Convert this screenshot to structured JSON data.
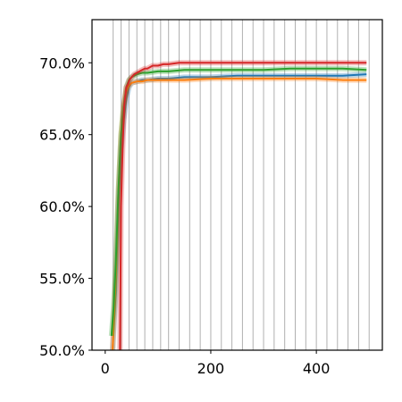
{
  "chart_data": {
    "type": "line",
    "title": "",
    "xlabel": "",
    "ylabel": "",
    "xlim": [
      -25,
      525
    ],
    "ylim": [
      50,
      73
    ],
    "x_ticks": [
      {
        "value": 0,
        "label": "0"
      },
      {
        "value": 200,
        "label": "200"
      },
      {
        "value": 400,
        "label": "400"
      }
    ],
    "y_ticks": [
      {
        "value": 50,
        "label": "50.0%"
      },
      {
        "value": 55,
        "label": "55.0%"
      },
      {
        "value": 60,
        "label": "60.0%"
      },
      {
        "value": 65,
        "label": "65.0%"
      },
      {
        "value": 70,
        "label": "70.0%"
      }
    ],
    "vertical_gridlines": [
      15,
      30,
      45,
      60,
      75,
      90,
      105,
      120,
      140,
      160,
      180,
      200,
      220,
      240,
      260,
      280,
      300,
      320,
      340,
      360,
      380,
      400,
      420,
      440,
      460,
      480,
      500
    ],
    "grid": "vertical-only",
    "legend": "none",
    "series": [
      {
        "color": "#1f77b4",
        "x": [
          14,
          20,
          25,
          30,
          35,
          40,
          45,
          50,
          60,
          70,
          80,
          100,
          120,
          150,
          200,
          250,
          300,
          350,
          400,
          450,
          495
        ],
        "y": [
          50,
          54,
          60,
          64,
          66,
          67.5,
          68.3,
          68.6,
          68.7,
          68.8,
          68.8,
          68.9,
          68.9,
          69.0,
          69.0,
          69.1,
          69.1,
          69.1,
          69.1,
          69.1,
          69.2
        ]
      },
      {
        "color": "#ff7f0e",
        "x": [
          14,
          20,
          25,
          30,
          35,
          40,
          45,
          50,
          60,
          70,
          80,
          100,
          120,
          150,
          200,
          250,
          300,
          350,
          400,
          450,
          495
        ],
        "y": [
          50,
          55,
          61,
          65,
          67,
          68,
          68.4,
          68.6,
          68.7,
          68.7,
          68.8,
          68.8,
          68.8,
          68.8,
          68.9,
          68.9,
          68.9,
          68.9,
          68.9,
          68.8,
          68.8
        ]
      },
      {
        "color": "#2ca02c",
        "x": [
          12,
          16,
          20,
          25,
          30,
          35,
          40,
          45,
          50,
          60,
          70,
          80,
          100,
          120,
          150,
          200,
          250,
          300,
          350,
          400,
          450,
          495
        ],
        "y": [
          51,
          53,
          56,
          61,
          65,
          67,
          68.3,
          68.8,
          69.0,
          69.2,
          69.3,
          69.3,
          69.4,
          69.4,
          69.5,
          69.5,
          69.5,
          69.5,
          69.6,
          69.6,
          69.6,
          69.5
        ]
      },
      {
        "color": "#d62728",
        "x": [
          28,
          30,
          33,
          36,
          40,
          43,
          46,
          50,
          55,
          60,
          65,
          70,
          75,
          80,
          85,
          90,
          100,
          110,
          120,
          140,
          160,
          180,
          200,
          240,
          280,
          320,
          360,
          400,
          440,
          480,
          495
        ],
        "y": [
          50,
          60,
          64,
          67,
          68.3,
          68.5,
          68.8,
          69.0,
          69.2,
          69.3,
          69.4,
          69.5,
          69.6,
          69.6,
          69.7,
          69.8,
          69.8,
          69.9,
          69.9,
          70.0,
          70.0,
          70.0,
          70.0,
          70.0,
          70.0,
          70.0,
          70.0,
          70.0,
          70.0,
          70.0,
          70.0
        ]
      }
    ]
  }
}
